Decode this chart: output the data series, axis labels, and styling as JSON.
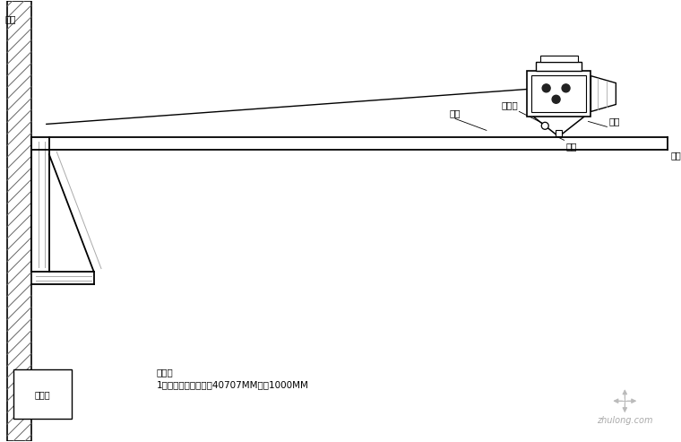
{
  "bg_color": "#ffffff",
  "line_color": "#000000",
  "gray_line": "#aaaaaa",
  "hatch_color": "#666666",
  "label_qiangti": "墙体",
  "label_ruanguan": "软管",
  "label_gudingdian": "固定点",
  "label_zhijia": "支架",
  "label_luosi": "螺丝",
  "label_hengjian": "横杆",
  "label_shebeixiang": "设备箱",
  "note_title": "说明：",
  "note_body": "1、横杆采用镀锌角钢40707MM长度1000MM",
  "watermark": "zhulong.com"
}
